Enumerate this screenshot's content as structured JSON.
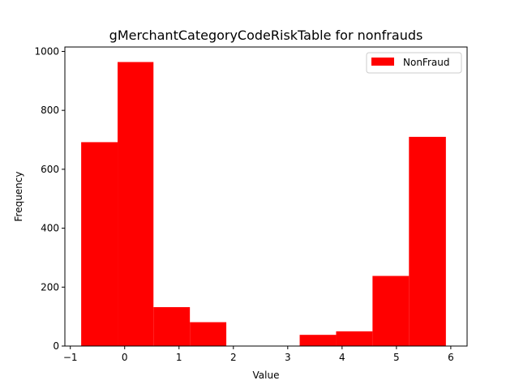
{
  "chart_data": {
    "type": "bar",
    "title": "gMerchantCategoryCodeRiskTable for nonfrauds",
    "xlabel": "Value",
    "ylabel": "Frequency",
    "xlim": [
      -1.1,
      6.3
    ],
    "ylim": [
      0,
      1015
    ],
    "xticks": [
      -1,
      0,
      1,
      2,
      3,
      4,
      5,
      6
    ],
    "yticks": [
      0,
      200,
      400,
      600,
      800,
      1000
    ],
    "grid": false,
    "legend_position": "top-right",
    "color": "#ff0000",
    "series": [
      {
        "name": "NonFraud",
        "bins": [
          {
            "x0": -0.8,
            "x1": -0.13,
            "count": 692
          },
          {
            "x0": -0.13,
            "x1": 0.53,
            "count": 964
          },
          {
            "x0": 0.53,
            "x1": 1.2,
            "count": 132
          },
          {
            "x0": 1.2,
            "x1": 1.87,
            "count": 81
          },
          {
            "x0": 1.87,
            "x1": 2.54,
            "count": 0
          },
          {
            "x0": 2.54,
            "x1": 3.22,
            "count": 0
          },
          {
            "x0": 3.22,
            "x1": 3.89,
            "count": 38
          },
          {
            "x0": 3.89,
            "x1": 4.56,
            "count": 50
          },
          {
            "x0": 4.56,
            "x1": 5.23,
            "count": 238
          },
          {
            "x0": 5.23,
            "x1": 5.91,
            "count": 710
          }
        ]
      }
    ]
  }
}
